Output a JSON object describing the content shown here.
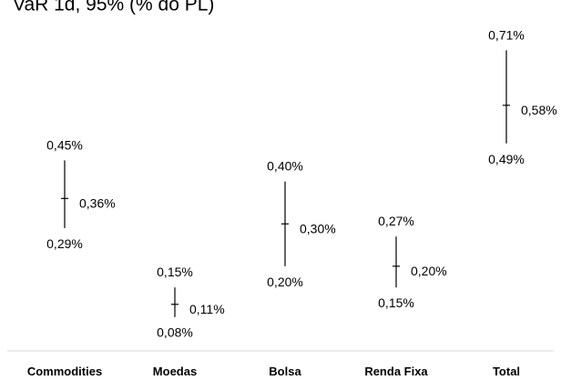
{
  "chart_data": {
    "type": "range",
    "title": "VaR 1d, 95% (% do PL)",
    "categories": [
      "Commodities",
      "Moedas",
      "Bolsa",
      "Renda Fixa",
      "Total"
    ],
    "series": [
      {
        "values": [
          {
            "low": 0.29,
            "mid": 0.36,
            "high": 0.45,
            "low_label": "0,29%",
            "mid_label": "0,36%",
            "high_label": "0,45%"
          },
          {
            "low": 0.08,
            "mid": 0.11,
            "high": 0.15,
            "low_label": "0,08%",
            "mid_label": "0,11%",
            "high_label": "0,15%"
          },
          {
            "low": 0.2,
            "mid": 0.3,
            "high": 0.4,
            "low_label": "0,20%",
            "mid_label": "0,30%",
            "high_label": "0,40%"
          },
          {
            "low": 0.15,
            "mid": 0.2,
            "high": 0.27,
            "low_label": "0,15%",
            "mid_label": "0,20%",
            "high_label": "0,27%"
          },
          {
            "low": 0.49,
            "mid": 0.58,
            "high": 0.71,
            "low_label": "0,49%",
            "mid_label": "0,58%",
            "high_label": "0,71%"
          }
        ]
      }
    ],
    "ylim": [
      0.0,
      0.76
    ],
    "grid": false,
    "legend": "none",
    "colors": {
      "line": "#000000",
      "axis": "#d9d9d9",
      "text": "#000000"
    }
  }
}
